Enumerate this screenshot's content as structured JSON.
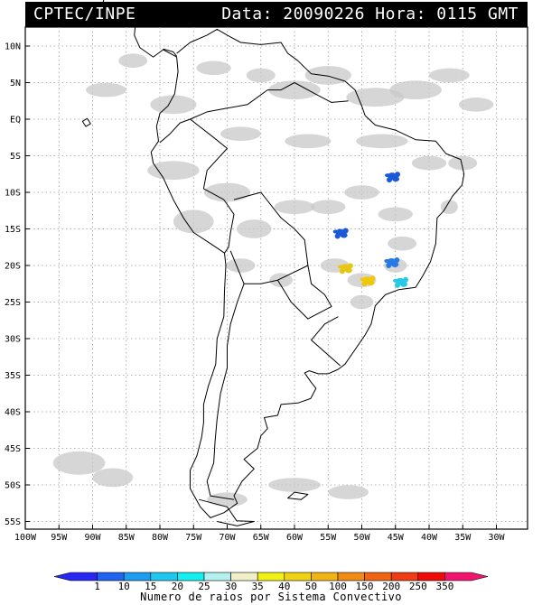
{
  "header": {
    "source": "CPTEC/INPE",
    "datetime": "Data: 20090226 Hora: 0115 GMT"
  },
  "map": {
    "lat_labels": [
      "10N",
      "5N",
      "EQ",
      "5S",
      "10S",
      "15S",
      "20S",
      "25S",
      "30S",
      "35S",
      "40S",
      "45S",
      "50S",
      "55S"
    ],
    "lon_labels": [
      "100W",
      "95W",
      "90W",
      "85W",
      "80W",
      "75W",
      "70W",
      "65W",
      "60W",
      "55W",
      "50W",
      "45W",
      "40W",
      "35W",
      "30W"
    ],
    "colors": {
      "cloud": "#c8c8c8",
      "coast": "#000000",
      "grid": "#9a9a9a"
    },
    "convective_systems": [
      {
        "name": "ne-brazil-cluster",
        "lat": -7.8,
        "lon": -45.5,
        "color": "#1a5ad7"
      },
      {
        "name": "goias-cell",
        "lat": -15.5,
        "lon": -53.2,
        "color": "#1a5ad7"
      },
      {
        "name": "minas-cell",
        "lat": -19.5,
        "lon": -45.6,
        "color": "#2878e6"
      },
      {
        "name": "rio-cell",
        "lat": -22.2,
        "lon": -44.3,
        "color": "#28c8e6"
      },
      {
        "name": "paraguay-parana-cluster",
        "lat": -20.3,
        "lon": -52.5,
        "color": "#e6c814"
      },
      {
        "name": "sao-paulo-cluster",
        "lat": -22.0,
        "lon": -49.2,
        "color": "#f0c80a"
      }
    ]
  },
  "legend": {
    "tick_labels": [
      "1",
      "10",
      "15",
      "20",
      "25",
      "30",
      "35",
      "40",
      "50",
      "100",
      "150",
      "200",
      "250",
      "350"
    ],
    "colors": [
      "#2828f0",
      "#1e64f0",
      "#1e9cf0",
      "#1ec8f0",
      "#14f0f0",
      "#b4f0f0",
      "#f0f0c8",
      "#f0f014",
      "#f0d214",
      "#f0b414",
      "#f08c14",
      "#f06414",
      "#f03c14",
      "#f00a0a",
      "#f0146e"
    ],
    "caption": "Numero de raios por Sistema Convectivo"
  }
}
